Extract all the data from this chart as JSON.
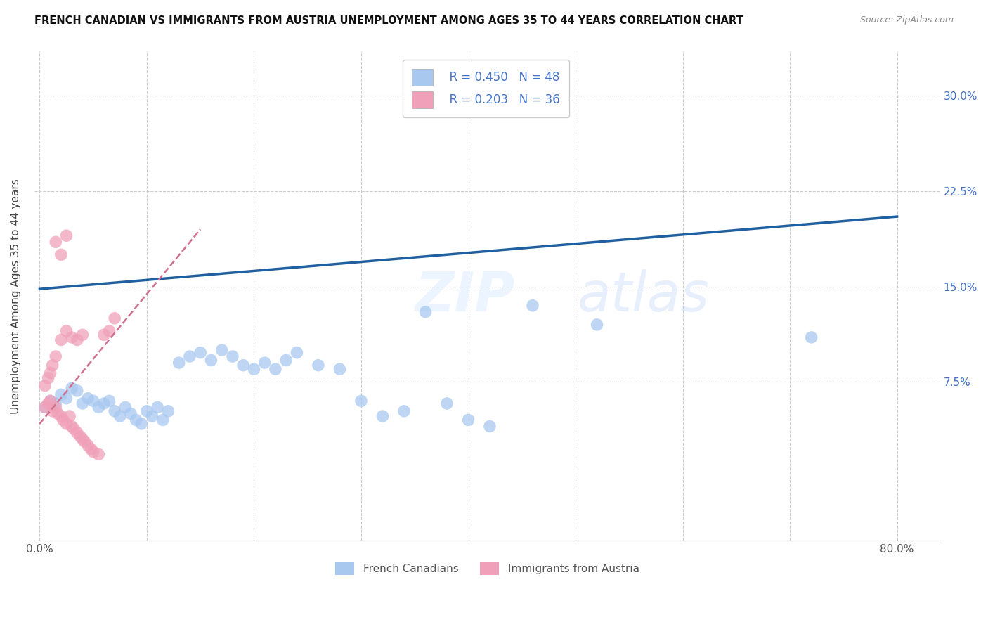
{
  "title": "FRENCH CANADIAN VS IMMIGRANTS FROM AUSTRIA UNEMPLOYMENT AMONG AGES 35 TO 44 YEARS CORRELATION CHART",
  "source": "Source: ZipAtlas.com",
  "ylabel": "Unemployment Among Ages 35 to 44 years",
  "xlim": [
    -0.005,
    0.84
  ],
  "ylim": [
    -0.05,
    0.335
  ],
  "xtick_positions": [
    0.0,
    0.1,
    0.2,
    0.3,
    0.4,
    0.5,
    0.6,
    0.7,
    0.8
  ],
  "xtick_labels": [
    "0.0%",
    "",
    "",
    "",
    "",
    "",
    "",
    "",
    "80.0%"
  ],
  "ytick_positions": [
    0.075,
    0.15,
    0.225,
    0.3
  ],
  "ytick_labels": [
    "7.5%",
    "15.0%",
    "22.5%",
    "30.0%"
  ],
  "blue_color": "#a8c8f0",
  "pink_color": "#f0a0b8",
  "blue_line_color": "#2060a0",
  "pink_line_color": "#d07090",
  "legend_R1": "R = 0.450",
  "legend_N1": "N = 48",
  "legend_R2": "R = 0.203",
  "legend_N2": "N = 36",
  "legend_label1": "French Canadians",
  "legend_label2": "Immigrants from Austria",
  "watermark": "ZIPatlas",
  "blue_scatter_x": [
    0.005,
    0.01,
    0.015,
    0.02,
    0.025,
    0.03,
    0.035,
    0.04,
    0.045,
    0.05,
    0.055,
    0.06,
    0.065,
    0.07,
    0.075,
    0.08,
    0.085,
    0.09,
    0.095,
    0.1,
    0.105,
    0.11,
    0.115,
    0.12,
    0.13,
    0.14,
    0.15,
    0.16,
    0.17,
    0.18,
    0.19,
    0.2,
    0.21,
    0.22,
    0.23,
    0.24,
    0.26,
    0.28,
    0.3,
    0.32,
    0.34,
    0.36,
    0.38,
    0.4,
    0.42,
    0.46,
    0.52,
    0.72
  ],
  "blue_scatter_y": [
    0.055,
    0.06,
    0.058,
    0.065,
    0.062,
    0.07,
    0.068,
    0.058,
    0.062,
    0.06,
    0.055,
    0.058,
    0.06,
    0.052,
    0.048,
    0.055,
    0.05,
    0.045,
    0.042,
    0.052,
    0.048,
    0.055,
    0.045,
    0.052,
    0.09,
    0.095,
    0.098,
    0.092,
    0.1,
    0.095,
    0.088,
    0.085,
    0.09,
    0.085,
    0.092,
    0.098,
    0.088,
    0.085,
    0.06,
    0.048,
    0.052,
    0.13,
    0.058,
    0.045,
    0.04,
    0.135,
    0.12,
    0.11
  ],
  "pink_scatter_x": [
    0.005,
    0.008,
    0.01,
    0.012,
    0.015,
    0.017,
    0.02,
    0.022,
    0.025,
    0.028,
    0.03,
    0.032,
    0.035,
    0.038,
    0.04,
    0.042,
    0.045,
    0.048,
    0.05,
    0.055,
    0.06,
    0.065,
    0.07,
    0.005,
    0.008,
    0.01,
    0.012,
    0.015,
    0.02,
    0.025,
    0.03,
    0.035,
    0.04,
    0.015,
    0.02,
    0.025
  ],
  "pink_scatter_y": [
    0.055,
    0.058,
    0.06,
    0.052,
    0.055,
    0.05,
    0.048,
    0.045,
    0.042,
    0.048,
    0.04,
    0.038,
    0.035,
    0.032,
    0.03,
    0.028,
    0.025,
    0.022,
    0.02,
    0.018,
    0.112,
    0.115,
    0.125,
    0.072,
    0.078,
    0.082,
    0.088,
    0.095,
    0.108,
    0.115,
    0.11,
    0.108,
    0.112,
    0.185,
    0.175,
    0.19
  ],
  "blue_line_x": [
    0.0,
    0.8
  ],
  "blue_line_y": [
    0.148,
    0.205
  ],
  "pink_line_x": [
    0.0,
    0.15
  ],
  "pink_line_y": [
    0.042,
    0.195
  ]
}
